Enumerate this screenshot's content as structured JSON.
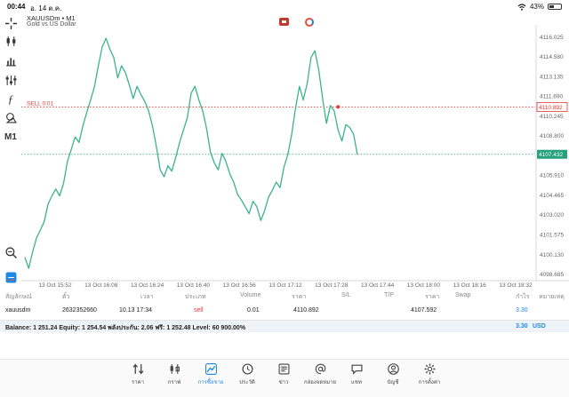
{
  "status": {
    "time": "00:44",
    "date": "อ. 14 ต.ค.",
    "battery": "43%",
    "battery_level": 0.43
  },
  "chart_header": {
    "symbol": "XAUUSDm • M1",
    "description": "Gold vs US Dollar"
  },
  "toolbar": {
    "timeframe": "M1"
  },
  "colors": {
    "line": "#3cb38b",
    "sell": "#e53935",
    "price_tag": "#26a17b",
    "accent": "#1e88e5"
  },
  "chart_data": {
    "type": "line",
    "x_labels": [
      "13 Oct 15:52",
      "13 Oct 16:08",
      "13 Oct 16:24",
      "13 Oct 16:40",
      "13 Oct 16:56",
      "13 Oct 17:12",
      "13 Oct 17:28",
      "13 Oct 17:44",
      "13 Oct 18:00",
      "13 Oct 18:16",
      "13 Oct 18:32"
    ],
    "y_labels": [
      "4116.025",
      "4114.580",
      "4113.135",
      "4111.690",
      "4110.245",
      "4108.800",
      "4107.355",
      "4105.910",
      "4104.465",
      "4103.020",
      "4101.575",
      "4100.130",
      "4098.685"
    ],
    "ylim": [
      4098.2,
      4116.5
    ],
    "series": [
      {
        "values": [
          4099.9,
          4099.1,
          4100.3,
          4101.3,
          4101.9,
          4102.5,
          4103.8,
          4104.4,
          4104.9,
          4104.4,
          4105.3,
          4106.9,
          4107.8,
          4108.7,
          4108.3,
          4109.5,
          4110.5,
          4111.4,
          4112.4,
          4113.9,
          4115.3,
          4115.9,
          4115.1,
          4114.5,
          4113.0,
          4113.9,
          4113.4,
          4112.5,
          4111.5,
          4112.4,
          4111.8,
          4111.3,
          4110.6,
          4109.5,
          4108.0,
          4106.3,
          4105.8,
          4106.6,
          4106.2,
          4107.2,
          4108.3,
          4109.2,
          4110.1,
          4111.9,
          4112.4,
          4111.4,
          4110.6,
          4109.3,
          4107.6,
          4106.8,
          4106.3,
          4107.5,
          4106.9,
          4106.0,
          4105.4,
          4104.5,
          4104.1,
          4103.6,
          4103.1,
          4104.0,
          4103.6,
          4102.6,
          4103.3,
          4104.3,
          4104.8,
          4105.4,
          4105.0,
          4106.5,
          4107.4,
          4108.9,
          4110.8,
          4112.4,
          4111.4,
          4112.6,
          4114.5,
          4115.0,
          4113.6,
          4111.5,
          4109.7,
          4111.0,
          4110.6,
          4109.2,
          4108.4,
          4109.6,
          4109.4,
          4108.9,
          4107.4
        ]
      }
    ],
    "sell_level": {
      "label": "SELL 0.01",
      "value": 4110.892,
      "tag": "4110.892"
    },
    "current_price": {
      "value": 4107.432,
      "tag": "4107.432"
    },
    "grid": false
  },
  "trades": {
    "headers": [
      "สัญลักษณ์",
      "ตั๋ว",
      "เวลา",
      "ประเภท",
      "Volume",
      "ราคา",
      "S/L",
      "T/P",
      "ราคา",
      "Swap",
      "กำไร",
      "หมายเหตุ"
    ],
    "row": {
      "symbol": "xauusdm",
      "ticket": "2632352660",
      "time": "10.13 17:34",
      "type": "sell",
      "volume": "0.01",
      "open_price": "4110.892",
      "price": "4107.592",
      "profit": "3.30"
    },
    "balance_text": "Balance: 1 251.24 Equity: 1 254.54 พลังประกัน: 2.06 ฟรี: 1 252.48 Level: 60 900.00%",
    "total_profit": "3.30",
    "currency": "USD"
  },
  "nav": [
    {
      "label": "ราคา",
      "icon": "quotes-arrows-icon"
    },
    {
      "label": "กราฟ",
      "icon": "candlestick-icon"
    },
    {
      "label": "การซื้อขาย",
      "icon": "trade-chart-icon",
      "active": true
    },
    {
      "label": "ประวัติ",
      "icon": "history-clock-icon"
    },
    {
      "label": "ข่าว",
      "icon": "news-icon"
    },
    {
      "label": "กล่องจดหมาย",
      "icon": "mailbox-at-icon"
    },
    {
      "label": "แชท",
      "icon": "chat-bubble-icon"
    },
    {
      "label": "บัญชี",
      "icon": "account-person-icon"
    },
    {
      "label": "การตั้งค่า",
      "icon": "settings-gear-icon"
    }
  ]
}
